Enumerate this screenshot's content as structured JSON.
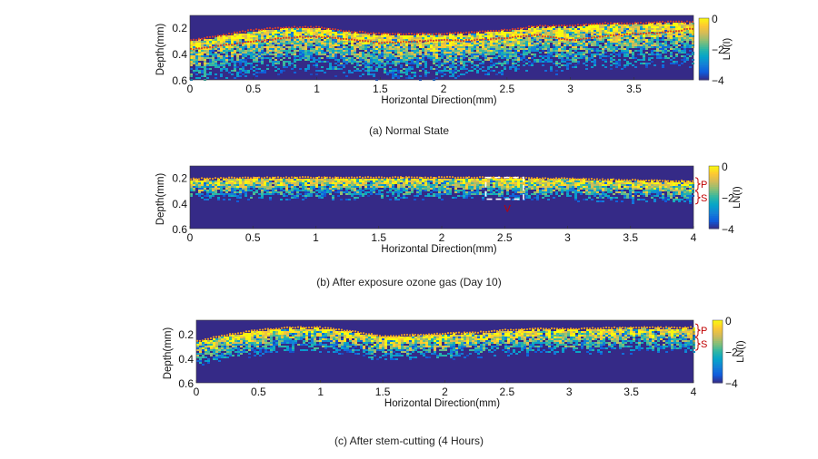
{
  "colormap": {
    "name": "parula",
    "stops": [
      "#352a87",
      "#0f5cdd",
      "#1481d6",
      "#06a4ca",
      "#2eb7a4",
      "#87bf77",
      "#d1bb59",
      "#fec832",
      "#f9fb0e"
    ]
  },
  "annotation_color": "#c00000",
  "chart_data": [
    {
      "type": "heatmap",
      "title": "",
      "caption": "(a) Normal State",
      "xlabel": "Horizontal Direction(mm)",
      "ylabel": "Depth(mm)",
      "xlim": [
        0,
        3.97
      ],
      "ylim": [
        0.11,
        0.6
      ],
      "xticks": [
        "0",
        "0.5",
        "1",
        "1.5",
        "2",
        "2.5",
        "3",
        "3.5"
      ],
      "xtick_values": [
        0,
        0.5,
        1,
        1.5,
        2,
        2.5,
        3,
        3.5
      ],
      "yticks": [
        "0.2",
        "0.4",
        "0.6"
      ],
      "ytick_values": [
        0.2,
        0.4,
        0.6
      ],
      "colorbar": {
        "label": "LN(I)",
        "range": [
          -4,
          0
        ],
        "ticks": [
          "0",
          "−2",
          "−4"
        ],
        "tick_values": [
          0,
          -2,
          -4
        ]
      },
      "surface_x": [
        0,
        0.25,
        0.5,
        0.75,
        1,
        1.25,
        1.5,
        1.75,
        2,
        2.25,
        2.5,
        2.75,
        3,
        3.25,
        3.5,
        3.75,
        3.97
      ],
      "surface_depth": [
        0.3,
        0.26,
        0.22,
        0.2,
        0.2,
        0.23,
        0.25,
        0.25,
        0.25,
        0.24,
        0.22,
        0.19,
        0.19,
        0.17,
        0.17,
        0.16,
        0.16
      ],
      "layer_boundary_depth": [
        0.37,
        0.34,
        0.31,
        0.28,
        0.27,
        0.29,
        0.32,
        0.31,
        0.3,
        0.3,
        0.28,
        0.26,
        0.3,
        0.27,
        0.25,
        0.24,
        0.21
      ],
      "signal_depth_range": 0.3,
      "annotations": []
    },
    {
      "type": "heatmap",
      "title": "",
      "caption": "(b) After exposure ozone gas (Day 10)",
      "xlabel": "Horizontal Direction(mm)",
      "ylabel": "Depth(mm)",
      "xlim": [
        0,
        4
      ],
      "ylim": [
        0.11,
        0.6
      ],
      "xticks": [
        "0",
        "0.5",
        "1",
        "1.5",
        "2",
        "2.5",
        "3",
        "3.5",
        "4"
      ],
      "xtick_values": [
        0,
        0.5,
        1,
        1.5,
        2,
        2.5,
        3,
        3.5,
        4
      ],
      "yticks": [
        "0.2",
        "0.4",
        "0.6"
      ],
      "ytick_values": [
        0.2,
        0.4,
        0.6
      ],
      "colorbar": {
        "label": "LN(I)",
        "range": [
          -4,
          0
        ],
        "ticks": [
          "0",
          "−2",
          "−4"
        ],
        "tick_values": [
          0,
          -2,
          -4
        ]
      },
      "surface_x": [
        0,
        0.5,
        1,
        1.5,
        2,
        2.5,
        3,
        3.5,
        4
      ],
      "surface_depth": [
        0.21,
        0.2,
        0.2,
        0.2,
        0.2,
        0.2,
        0.21,
        0.22,
        0.23
      ],
      "signal_depth_range": 0.15,
      "annotations": [
        {
          "type": "bracket",
          "label": "P"
        },
        {
          "type": "bracket",
          "label": "S"
        },
        {
          "type": "dashed-box",
          "label": "V",
          "x_range": [
            2.35,
            2.65
          ],
          "depth_range": [
            0.2,
            0.37
          ]
        }
      ]
    },
    {
      "type": "heatmap",
      "title": "",
      "caption": "(c) After stem-cutting (4 Hours)",
      "xlabel": "Horizontal Direction(mm)",
      "ylabel": "Depth(mm)",
      "xlim": [
        0,
        4
      ],
      "ylim": [
        0.09,
        0.6
      ],
      "xticks": [
        "0",
        "0.5",
        "1",
        "1.5",
        "2",
        "2.5",
        "3",
        "3.5",
        "4"
      ],
      "xtick_values": [
        0,
        0.5,
        1,
        1.5,
        2,
        2.5,
        3,
        3.5,
        4
      ],
      "yticks": [
        "0.2",
        "0.4",
        "0.6"
      ],
      "ytick_values": [
        0.2,
        0.4,
        0.6
      ],
      "colorbar": {
        "label": "LN(I)",
        "range": [
          -4,
          0
        ],
        "ticks": [
          "0",
          "−2",
          "−4"
        ],
        "tick_values": [
          0,
          -2,
          -4
        ]
      },
      "surface_x": [
        0,
        0.25,
        0.5,
        0.75,
        1,
        1.25,
        1.5,
        1.75,
        2,
        2.25,
        2.5,
        2.75,
        3,
        3.5,
        4
      ],
      "surface_depth": [
        0.26,
        0.21,
        0.17,
        0.15,
        0.15,
        0.18,
        0.22,
        0.21,
        0.2,
        0.19,
        0.17,
        0.16,
        0.16,
        0.15,
        0.15
      ],
      "signal_depth_range": 0.18,
      "annotations": [
        {
          "type": "bracket",
          "label": "P"
        },
        {
          "type": "bracket",
          "label": "S"
        }
      ]
    }
  ]
}
